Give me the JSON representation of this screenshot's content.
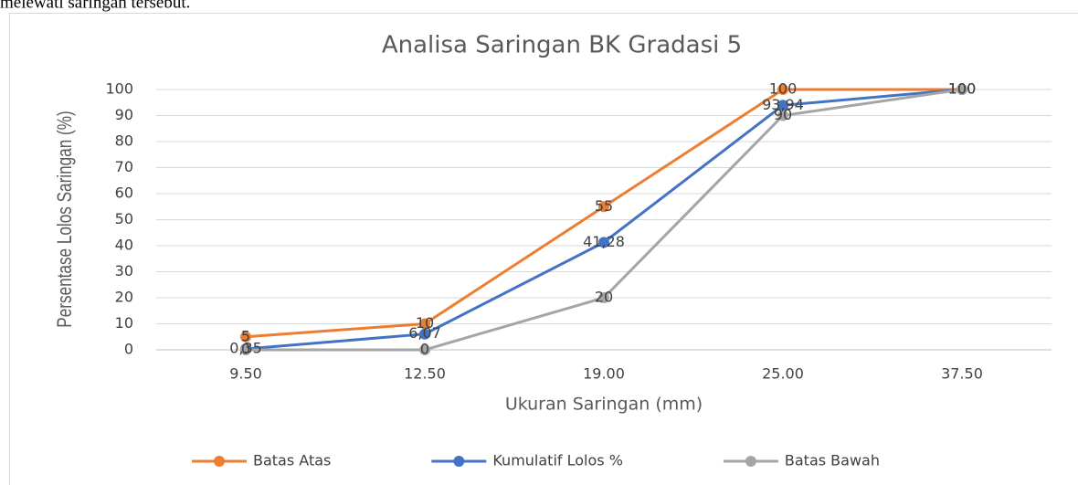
{
  "page_text": "melewati saringan tersebut.",
  "chart_data": {
    "type": "line",
    "title": "Analisa Saringan BK Gradasi 5",
    "x_label": "Ukuran Saringan (mm)",
    "y_label": "Persentase Lolos Saringan (%)",
    "categories": [
      "9.50",
      "12.50",
      "19.00",
      "25.00",
      "37.50"
    ],
    "series": [
      {
        "name": "Batas Atas",
        "color": "#ed7d31",
        "values": [
          5,
          10,
          55,
          100,
          100
        ]
      },
      {
        "name": "Kumulatif Lolos %",
        "color": "#4472c4",
        "values": [
          0.35,
          6.07,
          41.28,
          93.94,
          100
        ],
        "value_labels": [
          "0,35",
          "6,07",
          "41,28",
          "93,94",
          "100"
        ]
      },
      {
        "name": "Batas Bawah",
        "color": "#a5a5a5",
        "values": [
          0,
          0,
          20,
          90,
          100
        ]
      }
    ],
    "ylim": [
      0,
      100
    ],
    "yticks": [
      0,
      10,
      20,
      30,
      40,
      50,
      60,
      70,
      80,
      90,
      100
    ],
    "grid": true,
    "legend": "bottom"
  }
}
